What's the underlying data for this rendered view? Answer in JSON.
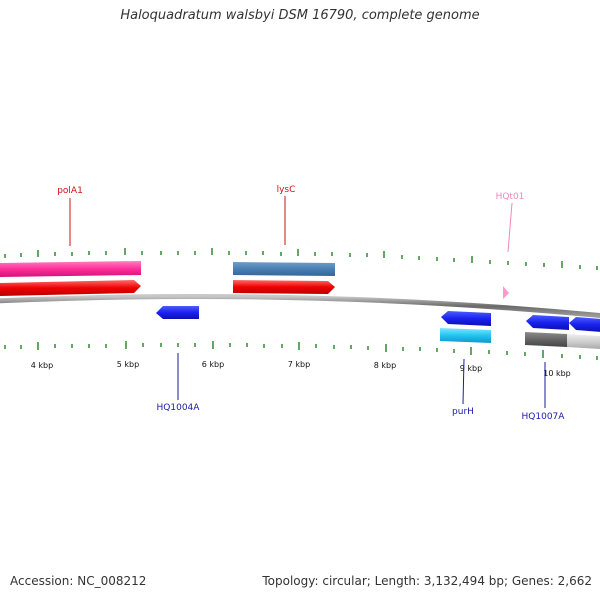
{
  "title": "Haloquadratum walsbyi DSM 16790, complete genome",
  "footer": {
    "accession": "Accession: NC_008212",
    "summary": "Topology: circular; Length: 3,132,494 bp; Genes: 2,662"
  },
  "colors": {
    "backbone": "#8a8a8a",
    "tick": "#2e8b2e",
    "top_label": "#cc1111",
    "bottom_label": "#1a1aaa",
    "trna_label": "#ee88bb"
  },
  "scale_labels": [
    "4 kbp",
    "5 kbp",
    "6 kbp",
    "7 kbp",
    "8 kbp",
    "9 kbp",
    "10 kbp"
  ],
  "gene_labels": {
    "polA1": "polA1",
    "lysC": "lysC",
    "hqt01": "HQt01",
    "hq1004a": "HQ1004A",
    "purH": "purH",
    "hq1007a": "HQ1007A"
  }
}
